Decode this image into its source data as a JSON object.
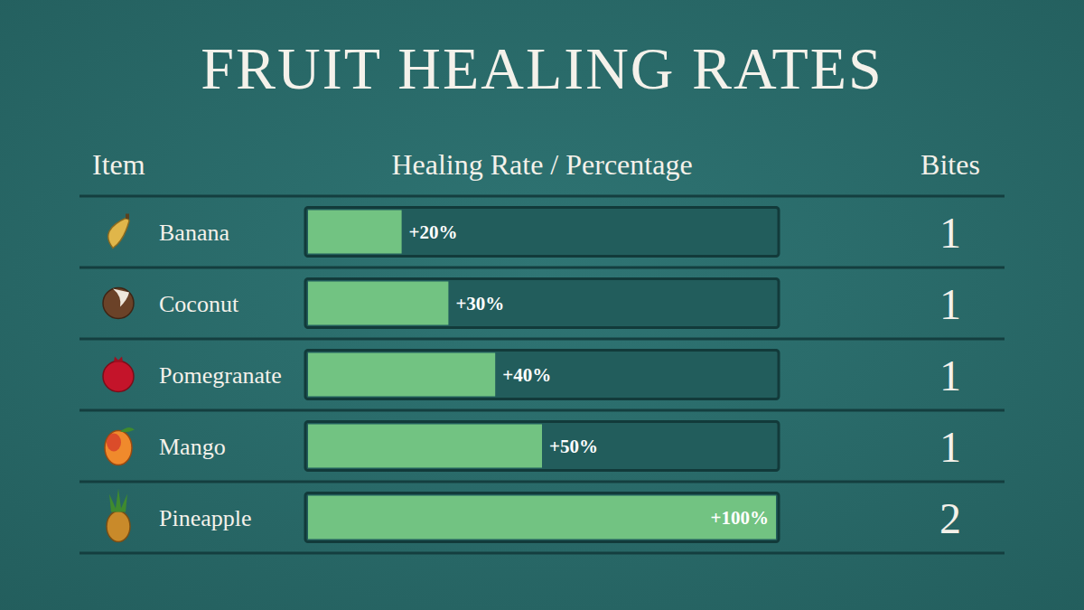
{
  "chart_data": {
    "type": "bar",
    "orientation": "horizontal",
    "title": "FRUIT HEALING RATES",
    "column_titles": [
      "Item",
      "Healing Rate / Percentage",
      "Bites"
    ],
    "categories": [
      "Banana",
      "Coconut",
      "Pomegranate",
      "Mango",
      "Pineapple"
    ],
    "values": [
      20,
      30,
      40,
      50,
      100
    ],
    "value_labels": [
      "+20%",
      "+30%",
      "+40%",
      "+50%",
      "+100%"
    ],
    "bites": [
      1,
      1,
      1,
      1,
      2
    ],
    "xlim": [
      0,
      100
    ],
    "data_labels": true,
    "tick_labels": false,
    "color": "#72c382"
  }
}
